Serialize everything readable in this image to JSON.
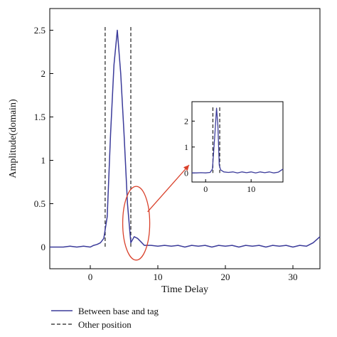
{
  "chart_data": [
    {
      "type": "line",
      "title": "",
      "xlabel": "Time Delay",
      "ylabel": "Amplitude(domain)",
      "xlim": [
        -6,
        34
      ],
      "ylim": [
        -0.25,
        2.75
      ],
      "x_ticks": [
        0,
        10,
        20,
        30
      ],
      "y_ticks": [
        0,
        0.5,
        1,
        1.5,
        2,
        2.5
      ],
      "x_tick_labels": [
        "0",
        "10",
        "20",
        "30"
      ],
      "y_tick_labels": [
        "0",
        "0.5",
        "1",
        "1.5",
        "2",
        "2.5"
      ],
      "series": [
        {
          "name": "Between base and tag",
          "style": "solid",
          "color": "#3b3b9a",
          "x": [
            -6,
            -5,
            -4,
            -3,
            -2,
            -1,
            0,
            0.5,
            1,
            1.5,
            2,
            2.5,
            3,
            3.5,
            4,
            4.5,
            5,
            5.5,
            6,
            6.5,
            7,
            7.5,
            8,
            9,
            10,
            11,
            12,
            13,
            14,
            15,
            16,
            17,
            18,
            19,
            20,
            21,
            22,
            23,
            24,
            25,
            26,
            27,
            28,
            29,
            30,
            31,
            32,
            33,
            34
          ],
          "y": [
            0.0,
            0.0,
            0.0,
            0.01,
            0.0,
            0.01,
            0.0,
            0.02,
            0.03,
            0.05,
            0.1,
            0.35,
            1.3,
            2.1,
            2.5,
            2.0,
            1.3,
            0.5,
            0.05,
            0.12,
            0.1,
            0.06,
            0.02,
            0.02,
            0.01,
            0.02,
            0.01,
            0.02,
            0.0,
            0.02,
            0.01,
            0.02,
            0.0,
            0.02,
            0.01,
            0.02,
            0.0,
            0.02,
            0.01,
            0.02,
            0.0,
            0.02,
            0.01,
            0.02,
            0.0,
            0.02,
            0.01,
            0.05,
            0.12
          ]
        },
        {
          "name": "Other position",
          "style": "dashed",
          "color": "#222222",
          "vlines": [
            2.2,
            6.0
          ]
        }
      ],
      "legend": {
        "placement": "bottom-left"
      },
      "annotation": {
        "type": "zoom-ellipse",
        "x_range": [
          4.8,
          8.8
        ],
        "y_range": [
          -0.15,
          0.7
        ],
        "color": "#d9412b"
      }
    },
    {
      "type": "line",
      "title": "",
      "xlim": [
        -3,
        17
      ],
      "ylim": [
        -0.35,
        2.75
      ],
      "x_ticks": [
        0,
        10
      ],
      "y_ticks": [
        0,
        1,
        2
      ],
      "x_tick_labels": [
        "0",
        "10"
      ],
      "y_tick_labels": [
        "0",
        "1",
        "2"
      ],
      "series": [
        {
          "name": "Between base and tag",
          "style": "solid",
          "color": "#3b3b9a",
          "x": [
            -3,
            -2,
            -1,
            0,
            1,
            1.5,
            2,
            2.4,
            2.7,
            3,
            3.3,
            4,
            5,
            6,
            7,
            8,
            9,
            10,
            11,
            12,
            13,
            14,
            15,
            16,
            17
          ],
          "y": [
            0.0,
            0.0,
            0.01,
            0.0,
            0.02,
            0.15,
            1.4,
            2.5,
            1.8,
            0.3,
            0.12,
            0.04,
            0.02,
            0.04,
            0.0,
            0.04,
            0.01,
            0.04,
            0.0,
            0.04,
            0.01,
            0.04,
            0.0,
            0.03,
            0.15
          ]
        },
        {
          "name": "Other position",
          "style": "dashed",
          "color": "#222222",
          "vlines": [
            1.6,
            3.1
          ]
        }
      ]
    }
  ]
}
